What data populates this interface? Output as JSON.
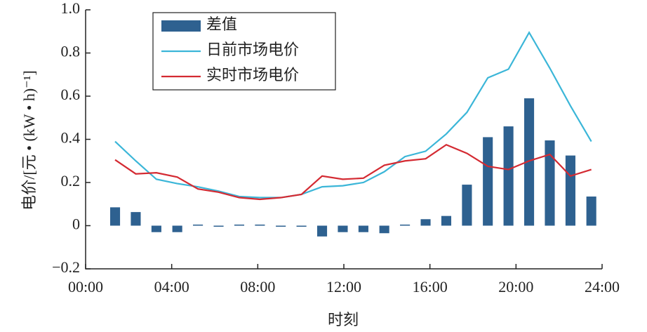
{
  "chart_data": {
    "type": "bar_line",
    "xlabel": "时刻",
    "ylabel": "电价/[元 • (kW • h)⁻¹]",
    "x": [
      1.37,
      2.33,
      3.29,
      4.26,
      5.22,
      6.18,
      7.14,
      8.1,
      9.07,
      10.03,
      10.99,
      11.95,
      12.91,
      13.88,
      14.84,
      15.8,
      16.76,
      17.72,
      18.69,
      19.65,
      20.61,
      21.57,
      22.53,
      23.5
    ],
    "series": [
      {
        "name": "差值",
        "kind": "bar",
        "color": "#2e6190",
        "values": [
          0.085,
          0.063,
          -0.03,
          -0.03,
          0.005,
          0,
          0.005,
          0.005,
          0,
          -0.005,
          -0.05,
          -0.03,
          -0.03,
          -0.035,
          0.005,
          0.03,
          0.045,
          0.19,
          0.41,
          0.46,
          0.59,
          0.395,
          0.325,
          0.135
        ]
      },
      {
        "name": "日前市场电价",
        "kind": "line",
        "color": "#3bb6d8",
        "values": [
          0.39,
          0.3,
          0.215,
          0.195,
          0.18,
          0.16,
          0.135,
          0.13,
          0.13,
          0.145,
          0.18,
          0.185,
          0.2,
          0.25,
          0.32,
          0.345,
          0.425,
          0.525,
          0.685,
          0.725,
          0.895,
          0.73,
          0.555,
          0.39
        ]
      },
      {
        "name": "实时市场电价",
        "kind": "line",
        "color": "#d42a32",
        "values": [
          0.305,
          0.24,
          0.245,
          0.225,
          0.17,
          0.155,
          0.13,
          0.122,
          0.13,
          0.145,
          0.23,
          0.215,
          0.22,
          0.28,
          0.3,
          0.31,
          0.375,
          0.335,
          0.275,
          0.26,
          0.3,
          0.33,
          0.23,
          0.26
        ]
      }
    ],
    "xlim": [
      0,
      24
    ],
    "xticks": [
      {
        "value": 0,
        "label": "00:00"
      },
      {
        "value": 4,
        "label": "04:00"
      },
      {
        "value": 8,
        "label": "08:00"
      },
      {
        "value": 12,
        "label": "12:00"
      },
      {
        "value": 16,
        "label": "16:00"
      },
      {
        "value": 20,
        "label": "20:00"
      },
      {
        "value": 24,
        "label": "24:00"
      }
    ],
    "ylim": [
      -0.2,
      1
    ],
    "yticks": [
      {
        "value": -0.2,
        "label": "−0.2"
      },
      0,
      0.2,
      0.4,
      0.6,
      0.8,
      {
        "value": 1,
        "label": "1.0"
      }
    ],
    "legend": "upper left",
    "grid": false
  }
}
